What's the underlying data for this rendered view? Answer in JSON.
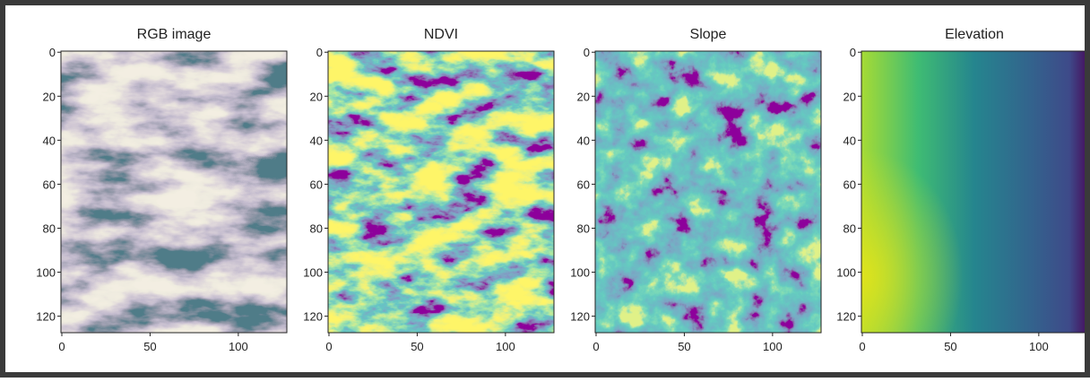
{
  "chart_data": [
    {
      "type": "image",
      "title": "RGB image",
      "xlim": [
        -0.5,
        127.5
      ],
      "ylim": [
        127.5,
        -0.5
      ],
      "xticks": [
        0,
        50,
        100
      ],
      "yticks": [
        0,
        20,
        40,
        60,
        80,
        100,
        120
      ]
    },
    {
      "type": "image",
      "title": "NDVI",
      "colormap": "viridis",
      "xlim": [
        -0.5,
        127.5
      ],
      "ylim": [
        127.5,
        -0.5
      ],
      "xticks": [
        0,
        50,
        100
      ],
      "yticks": [
        0,
        20,
        40,
        60,
        80,
        100,
        120
      ]
    },
    {
      "type": "image",
      "title": "Slope",
      "colormap": "viridis",
      "xlim": [
        -0.5,
        127.5
      ],
      "ylim": [
        127.5,
        -0.5
      ],
      "xticks": [
        0,
        50,
        100
      ],
      "yticks": [
        0,
        20,
        40,
        60,
        80,
        100,
        120
      ]
    },
    {
      "type": "image",
      "title": "Elevation",
      "colormap": "viridis",
      "xlim": [
        -0.5,
        127.5
      ],
      "ylim": [
        127.5,
        -0.5
      ],
      "xticks": [
        0,
        50,
        100
      ],
      "yticks": [
        0,
        20,
        40,
        60,
        80,
        100,
        120
      ]
    }
  ]
}
